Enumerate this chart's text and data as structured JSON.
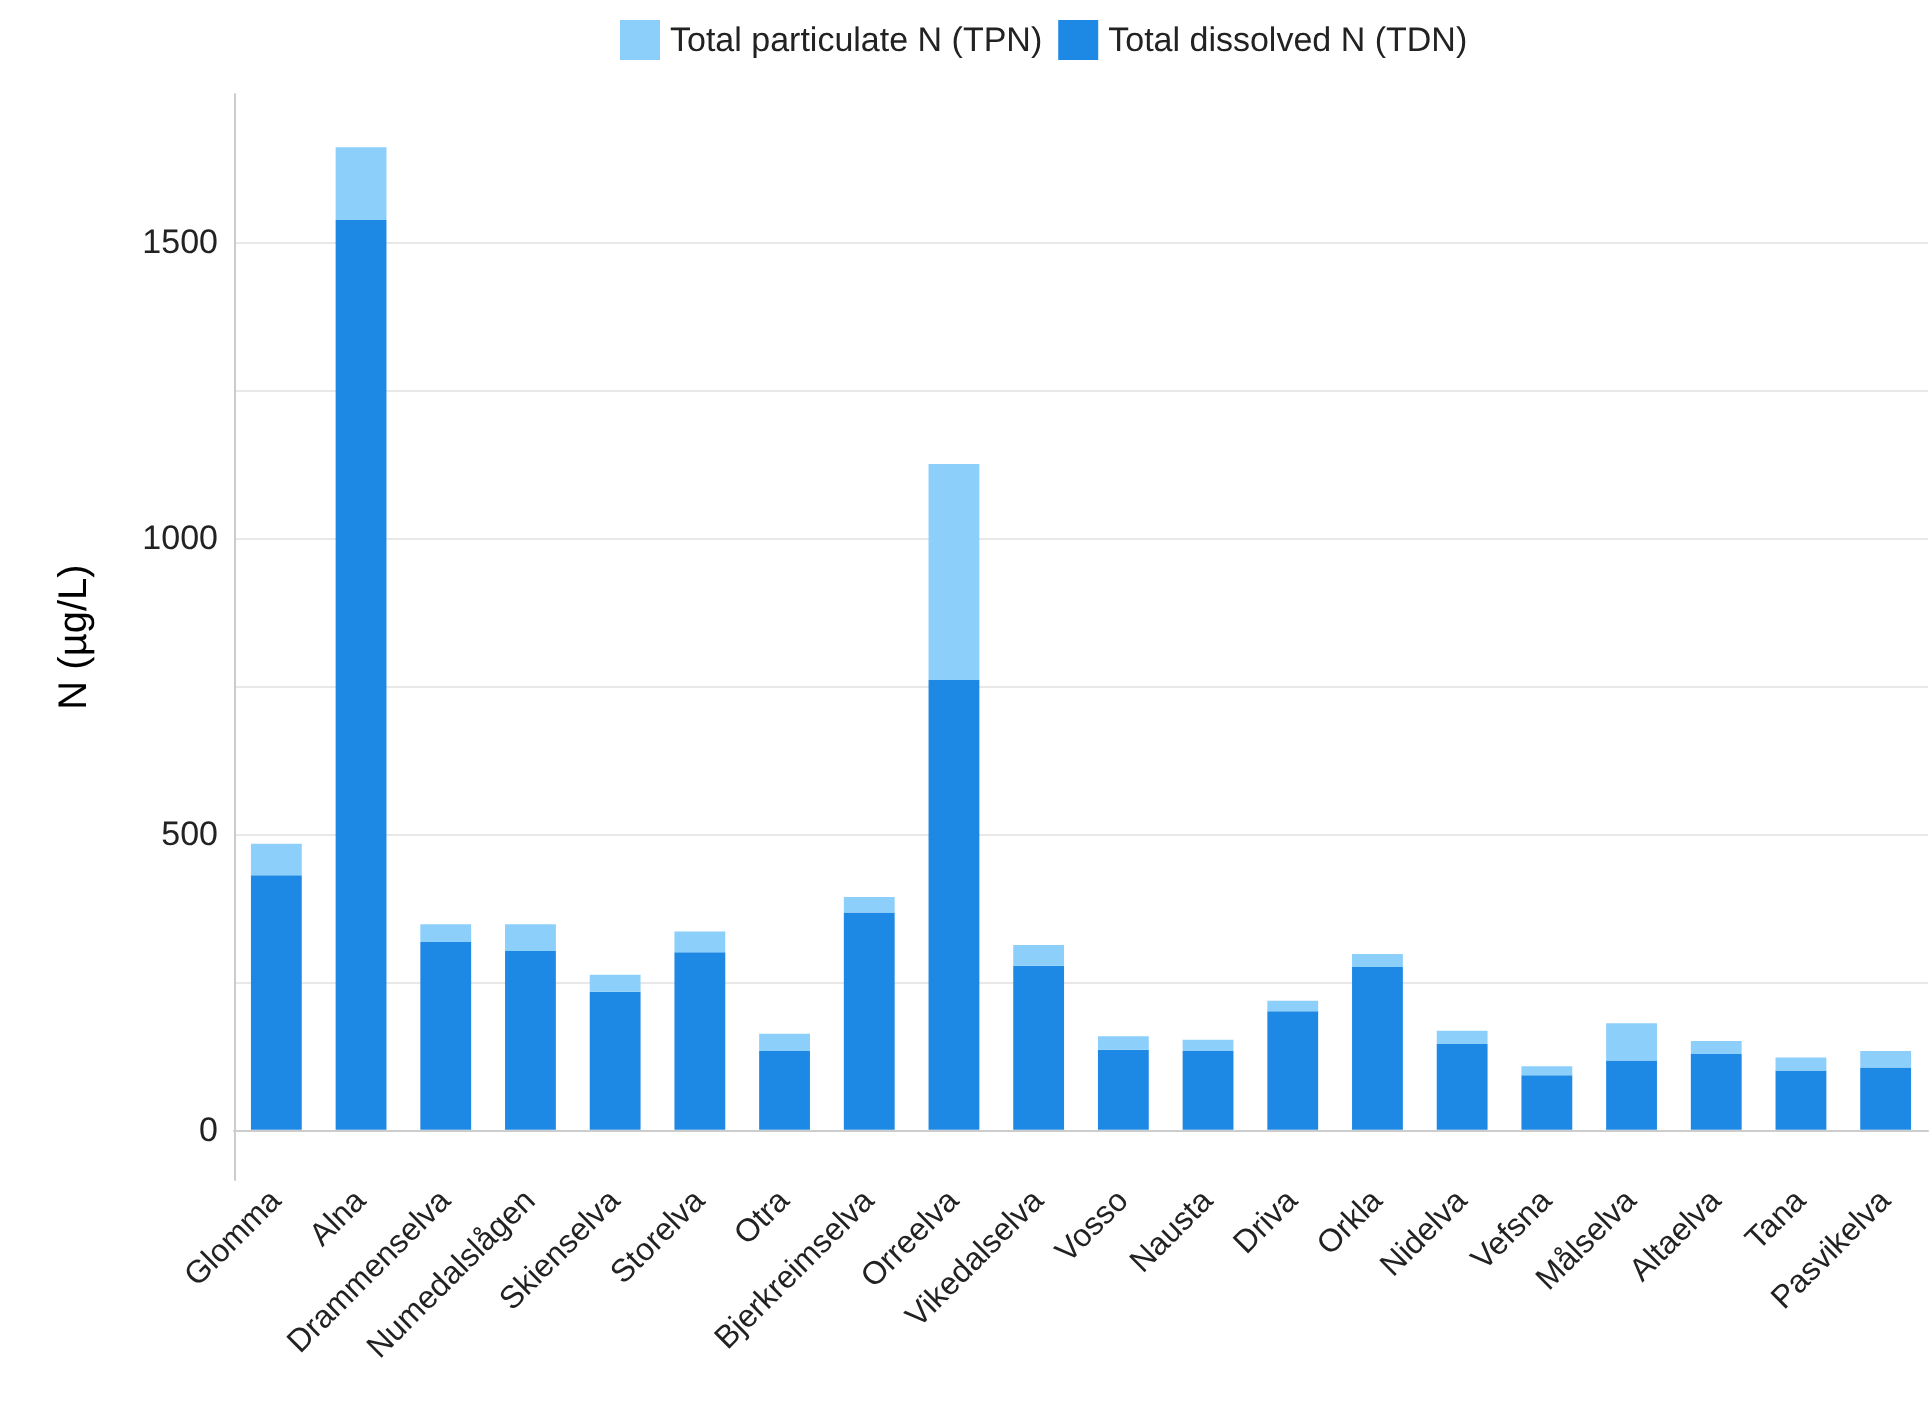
{
  "chart_data": {
    "type": "bar",
    "stacked": true,
    "ylabel": "N (µg/L)",
    "categories": [
      "Glomma",
      "Alna",
      "Drammenselva",
      "Numedalslågen",
      "Skienselva",
      "Storelva",
      "Otra",
      "Bjerkreimselva",
      "Orreelva",
      "Vikedalselva",
      "Vosso",
      "Nausta",
      "Driva",
      "Orkla",
      "Nidelva",
      "Vefsna",
      "Målselva",
      "Altaelva",
      "Tana",
      "Pasvikelva"
    ],
    "series": [
      {
        "name": "Total dissolved N (TDN)",
        "color": "#1e88e5",
        "values": [
          430,
          1537,
          317,
          302,
          233,
          300,
          133,
          367,
          760,
          277,
          135,
          133,
          200,
          275,
          145,
          92,
          117,
          128,
          100,
          105
        ]
      },
      {
        "name": "Total particulate N (TPN)",
        "color": "#8ccffb",
        "values": [
          53,
          123,
          30,
          45,
          29,
          35,
          29,
          26,
          365,
          35,
          23,
          19,
          18,
          22,
          22,
          15,
          63,
          22,
          22,
          28
        ]
      }
    ],
    "ylim": [
      -85,
      1750
    ],
    "yticks": [
      0,
      {
        "value": 250,
        "label": null
      },
      500,
      {
        "value": 750,
        "label": null
      },
      1000,
      {
        "value": 1250,
        "label": null
      },
      1500
    ],
    "grid": "y",
    "legend": "top"
  }
}
